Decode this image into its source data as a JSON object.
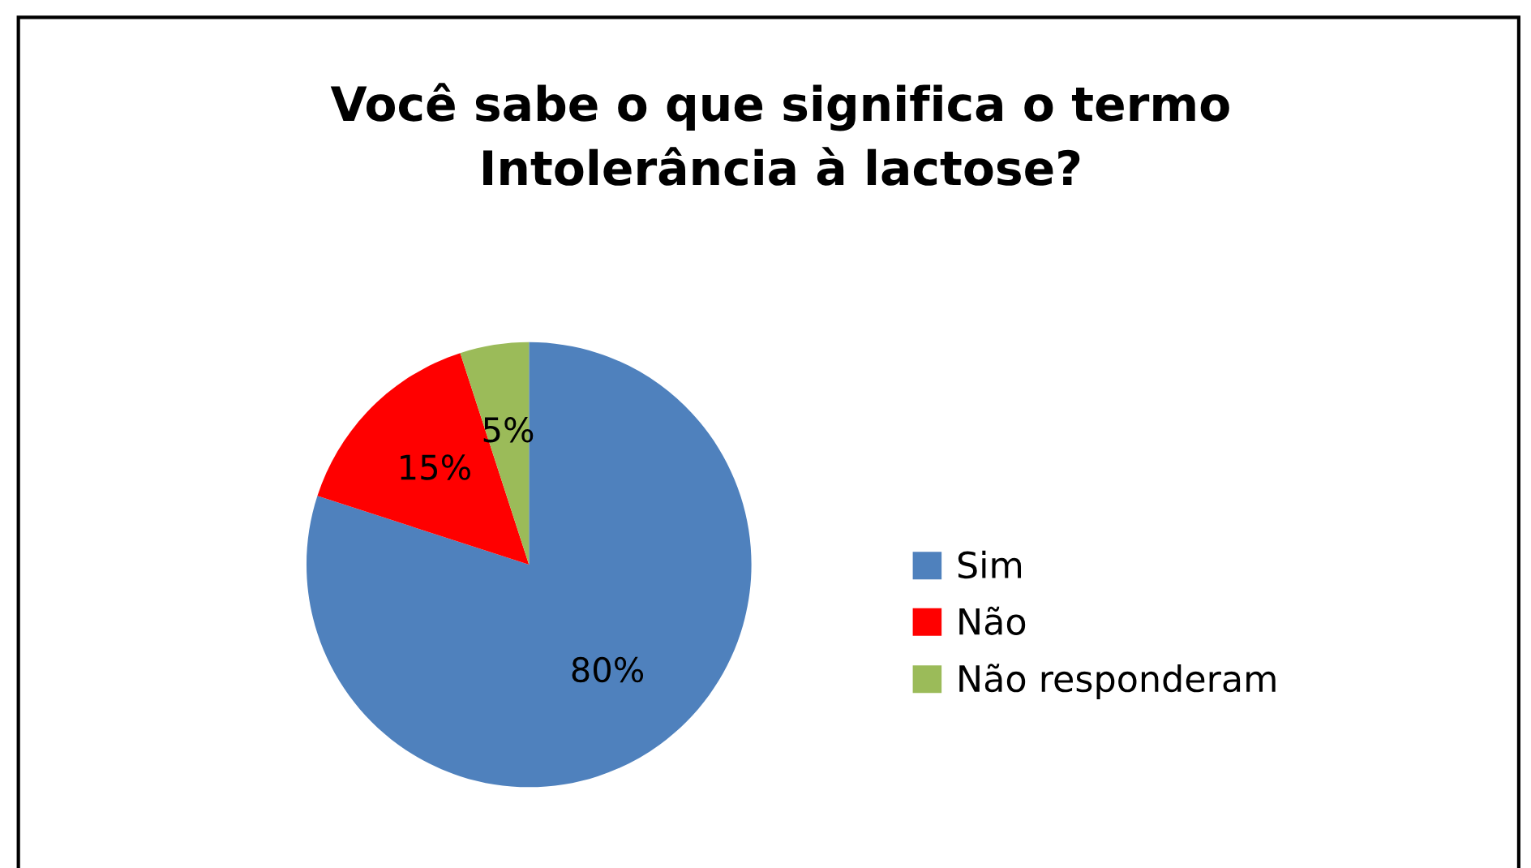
{
  "chart_data": {
    "type": "pie",
    "title": "Você sabe o que significa o termo\nIntolerância à lactose?",
    "categories": [
      "Sim",
      "Não",
      "Não responderam"
    ],
    "values": [
      80,
      15,
      5
    ],
    "colors": [
      "#4f81bd",
      "#ff0000",
      "#9bbb59"
    ],
    "value_labels": [
      "80%",
      "15%",
      "5%"
    ],
    "legend": "right"
  }
}
